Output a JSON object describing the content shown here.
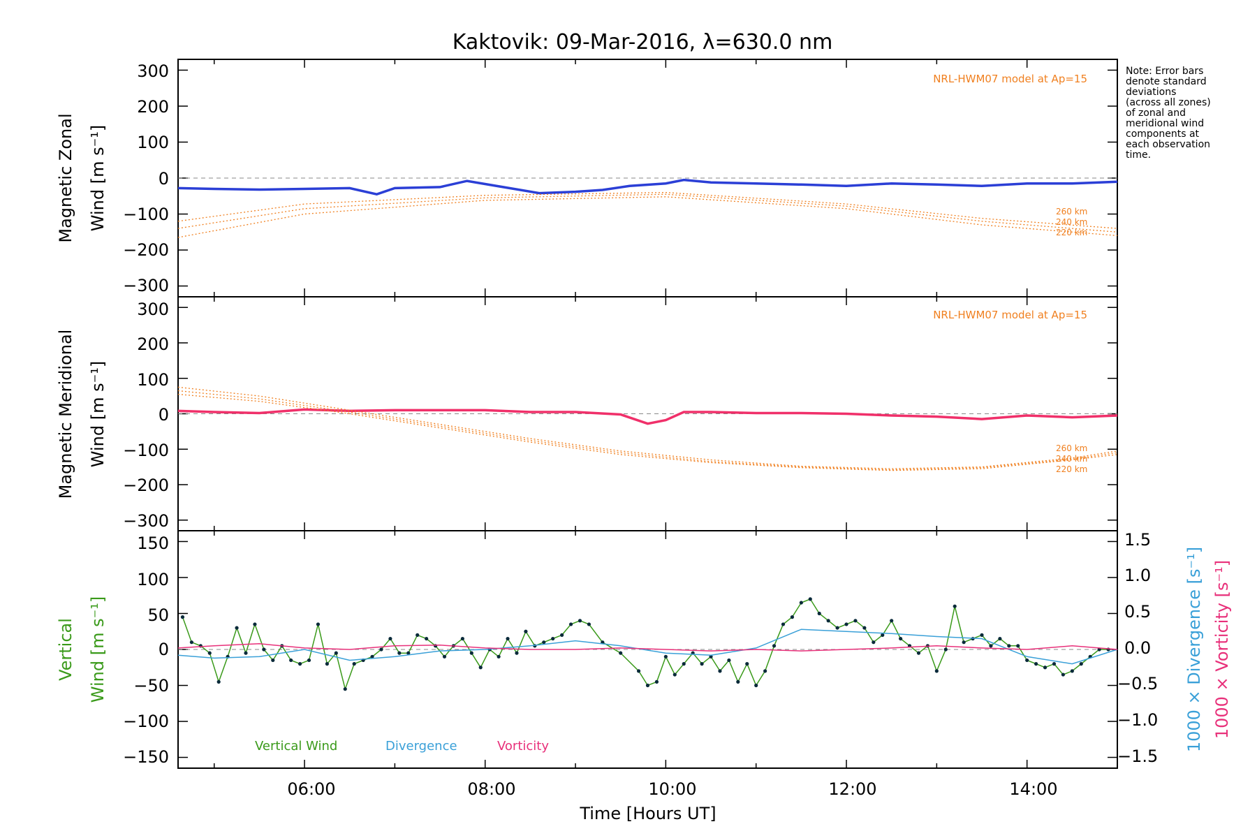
{
  "title": "Kaktovik: 09-Mar-2016, λ=630.0 nm",
  "note": [
    "Note: Error bars",
    "denote standard",
    "deviations",
    "(across all zones)",
    "of zonal and",
    "meridional wind",
    "components at",
    "each observation",
    "time."
  ],
  "xlabel": "Time [Hours UT]",
  "x_ticks": [
    "06:00",
    "08:00",
    "10:00",
    "12:00",
    "14:00"
  ],
  "model_label": "NRL-HWM07 model at Ap=15",
  "alt_labels": [
    "260 km",
    "240 km",
    "220 km"
  ],
  "legend": {
    "vertical": "Vertical Wind",
    "divergence": "Divergence",
    "vorticity": "Vorticity"
  },
  "colors": {
    "zonal": "#2b3fd6",
    "meridional": "#f0306a",
    "vertical": "#3a9a1a",
    "divergence": "#3aa0d8",
    "vorticity": "#e8307a",
    "model": "#f08020",
    "scatter": "#a8a0e8"
  },
  "chart_data": [
    {
      "type": "line",
      "panel": "zonal",
      "ylabel_line1": "Magnetic Zonal",
      "ylabel_line2": "Wind [m s⁻¹]",
      "xlim": [
        4.6,
        15.0
      ],
      "ylim": [
        -330,
        330
      ],
      "yticks": [
        -300,
        -200,
        -100,
        0,
        100,
        200,
        300
      ],
      "series": [
        {
          "role": "mean",
          "x": [
            4.6,
            5.0,
            5.5,
            6.0,
            6.5,
            6.8,
            7.0,
            7.5,
            7.8,
            8.2,
            8.6,
            9.0,
            9.3,
            9.6,
            10.0,
            10.2,
            10.5,
            11.0,
            11.5,
            12.0,
            12.5,
            13.0,
            13.5,
            14.0,
            14.5,
            15.0
          ],
          "y": [
            -28,
            -30,
            -32,
            -30,
            -28,
            -45,
            -28,
            -25,
            -8,
            -25,
            -42,
            -38,
            -33,
            -22,
            -15,
            -5,
            -12,
            -15,
            -18,
            -22,
            -15,
            -18,
            -22,
            -15,
            -15,
            -10
          ]
        },
        {
          "role": "model",
          "altitude": "260 km",
          "x": [
            4.6,
            6.0,
            8.0,
            10.0,
            12.0,
            13.5,
            15.0
          ],
          "y": [
            -120,
            -72,
            -48,
            -40,
            -72,
            -112,
            -140
          ]
        },
        {
          "role": "model",
          "altitude": "240 km",
          "x": [
            4.6,
            6.0,
            8.0,
            10.0,
            12.0,
            13.5,
            15.0
          ],
          "y": [
            -140,
            -85,
            -55,
            -45,
            -78,
            -120,
            -150
          ]
        },
        {
          "role": "model",
          "altitude": "220 km",
          "x": [
            4.6,
            6.0,
            8.0,
            10.0,
            12.0,
            13.5,
            15.0
          ],
          "y": [
            -165,
            -100,
            -62,
            -52,
            -85,
            -130,
            -160
          ]
        }
      ]
    },
    {
      "type": "line",
      "panel": "meridional",
      "ylabel_line1": "Magnetic Meridional",
      "ylabel_line2": "Wind [m s⁻¹]",
      "xlim": [
        4.6,
        15.0
      ],
      "ylim": [
        -330,
        330
      ],
      "yticks": [
        -300,
        -200,
        -100,
        0,
        100,
        200,
        300
      ],
      "series": [
        {
          "role": "mean",
          "x": [
            4.6,
            5.0,
            5.5,
            6.0,
            6.5,
            7.0,
            7.5,
            8.0,
            8.5,
            9.0,
            9.5,
            9.8,
            10.0,
            10.2,
            10.5,
            11.0,
            11.5,
            12.0,
            12.5,
            13.0,
            13.5,
            14.0,
            14.5,
            15.0
          ],
          "y": [
            8,
            5,
            2,
            12,
            8,
            10,
            10,
            10,
            5,
            5,
            -2,
            -28,
            -18,
            5,
            5,
            2,
            2,
            0,
            -5,
            -8,
            -15,
            -5,
            -10,
            -5
          ]
        },
        {
          "role": "model",
          "altitude": "260 km",
          "x": [
            4.6,
            5.5,
            6.5,
            7.5,
            8.5,
            9.5,
            10.5,
            11.5,
            12.5,
            13.5,
            14.5,
            15.0
          ],
          "y": [
            75,
            50,
            10,
            -30,
            -70,
            -105,
            -130,
            -148,
            -155,
            -150,
            -125,
            -105
          ]
        },
        {
          "role": "model",
          "altitude": "240 km",
          "x": [
            4.6,
            5.5,
            6.5,
            7.5,
            8.5,
            9.5,
            10.5,
            11.5,
            12.5,
            13.5,
            14.5,
            15.0
          ],
          "y": [
            65,
            42,
            5,
            -35,
            -75,
            -110,
            -135,
            -150,
            -158,
            -152,
            -128,
            -110
          ]
        },
        {
          "role": "model",
          "altitude": "220 km",
          "x": [
            4.6,
            5.5,
            6.5,
            7.5,
            8.5,
            9.5,
            10.5,
            11.5,
            12.5,
            13.5,
            14.5,
            15.0
          ],
          "y": [
            55,
            35,
            0,
            -40,
            -80,
            -115,
            -138,
            -152,
            -160,
            -155,
            -130,
            -115
          ]
        }
      ]
    },
    {
      "type": "line",
      "panel": "vertical",
      "ylabel_line1": "Vertical",
      "ylabel_line2": "Wind [m s⁻¹]",
      "y2label_div": "1000 × Divergence [s⁻¹]",
      "y2label_vort": "1000 × Vorticity [s⁻¹]",
      "xlim": [
        4.6,
        15.0
      ],
      "ylim": [
        -165,
        165
      ],
      "yticks": [
        -150,
        -100,
        -50,
        0,
        50,
        100,
        150
      ],
      "y2lim": [
        -1.65,
        1.65
      ],
      "y2ticks": [
        -1.5,
        -1.0,
        -0.5,
        0.0,
        0.5,
        1.0,
        1.5
      ],
      "series": [
        {
          "name": "Vertical Wind",
          "role": "vertical",
          "x": [
            4.65,
            4.75,
            4.85,
            4.95,
            5.05,
            5.15,
            5.25,
            5.35,
            5.45,
            5.55,
            5.65,
            5.75,
            5.85,
            5.95,
            6.05,
            6.15,
            6.25,
            6.35,
            6.45,
            6.55,
            6.65,
            6.75,
            6.85,
            6.95,
            7.05,
            7.15,
            7.25,
            7.35,
            7.45,
            7.55,
            7.65,
            7.75,
            7.85,
            7.95,
            8.05,
            8.15,
            8.25,
            8.35,
            8.45,
            8.55,
            8.65,
            8.75,
            8.85,
            8.95,
            9.05,
            9.15,
            9.3,
            9.5,
            9.7,
            9.8,
            9.9,
            10.0,
            10.1,
            10.2,
            10.3,
            10.4,
            10.5,
            10.6,
            10.7,
            10.8,
            10.9,
            11.0,
            11.1,
            11.2,
            11.3,
            11.4,
            11.5,
            11.6,
            11.7,
            11.8,
            11.9,
            12.0,
            12.1,
            12.2,
            12.3,
            12.4,
            12.5,
            12.6,
            12.7,
            12.8,
            12.9,
            13.0,
            13.1,
            13.2,
            13.3,
            13.4,
            13.5,
            13.6,
            13.7,
            13.8,
            13.9,
            14.0,
            14.1,
            14.2,
            14.3,
            14.4,
            14.5,
            14.6,
            14.7,
            14.8,
            14.9
          ],
          "y": [
            45,
            10,
            5,
            -5,
            -45,
            -10,
            30,
            -5,
            35,
            0,
            -15,
            5,
            -15,
            -20,
            -15,
            35,
            -20,
            -5,
            -55,
            -20,
            -15,
            -10,
            0,
            15,
            -5,
            -5,
            20,
            15,
            5,
            -10,
            5,
            15,
            -5,
            -25,
            0,
            -10,
            15,
            -5,
            25,
            5,
            10,
            15,
            20,
            35,
            40,
            35,
            10,
            -5,
            -30,
            -50,
            -45,
            -10,
            -35,
            -20,
            -5,
            -20,
            -10,
            -30,
            -15,
            -45,
            -20,
            -50,
            -30,
            5,
            35,
            45,
            65,
            70,
            50,
            40,
            30,
            35,
            40,
            30,
            10,
            20,
            40,
            15,
            5,
            -5,
            5,
            -30,
            0,
            60,
            10,
            15,
            20,
            5,
            15,
            5,
            5,
            -15,
            -20,
            -25,
            -20,
            -35,
            -30,
            -20,
            -10,
            0,
            0
          ]
        },
        {
          "name": "Divergence",
          "role": "divergence",
          "x": [
            4.6,
            5.0,
            5.5,
            6.0,
            6.5,
            7.0,
            7.5,
            8.0,
            8.5,
            9.0,
            9.5,
            10.0,
            10.5,
            11.0,
            11.5,
            12.0,
            12.5,
            13.0,
            13.5,
            14.0,
            14.5,
            15.0
          ],
          "y": [
            -0.08,
            -0.12,
            -0.1,
            0.0,
            -0.15,
            -0.1,
            -0.02,
            0.0,
            0.05,
            0.12,
            0.05,
            -0.05,
            -0.08,
            0.02,
            0.28,
            0.25,
            0.22,
            0.18,
            0.15,
            -0.1,
            -0.2,
            0.0
          ]
        },
        {
          "name": "Vorticity",
          "role": "vorticity",
          "x": [
            4.6,
            5.0,
            5.5,
            6.0,
            6.5,
            7.0,
            7.5,
            8.0,
            8.5,
            9.0,
            9.5,
            10.0,
            10.5,
            11.0,
            11.5,
            12.0,
            12.5,
            13.0,
            13.5,
            14.0,
            14.5,
            15.0
          ],
          "y": [
            0.02,
            0.05,
            0.08,
            0.02,
            0.0,
            0.05,
            0.06,
            0.02,
            0.0,
            0.0,
            0.02,
            0.0,
            -0.02,
            0.0,
            -0.02,
            0.0,
            0.02,
            0.05,
            0.02,
            0.0,
            0.05,
            0.0
          ]
        }
      ]
    }
  ]
}
